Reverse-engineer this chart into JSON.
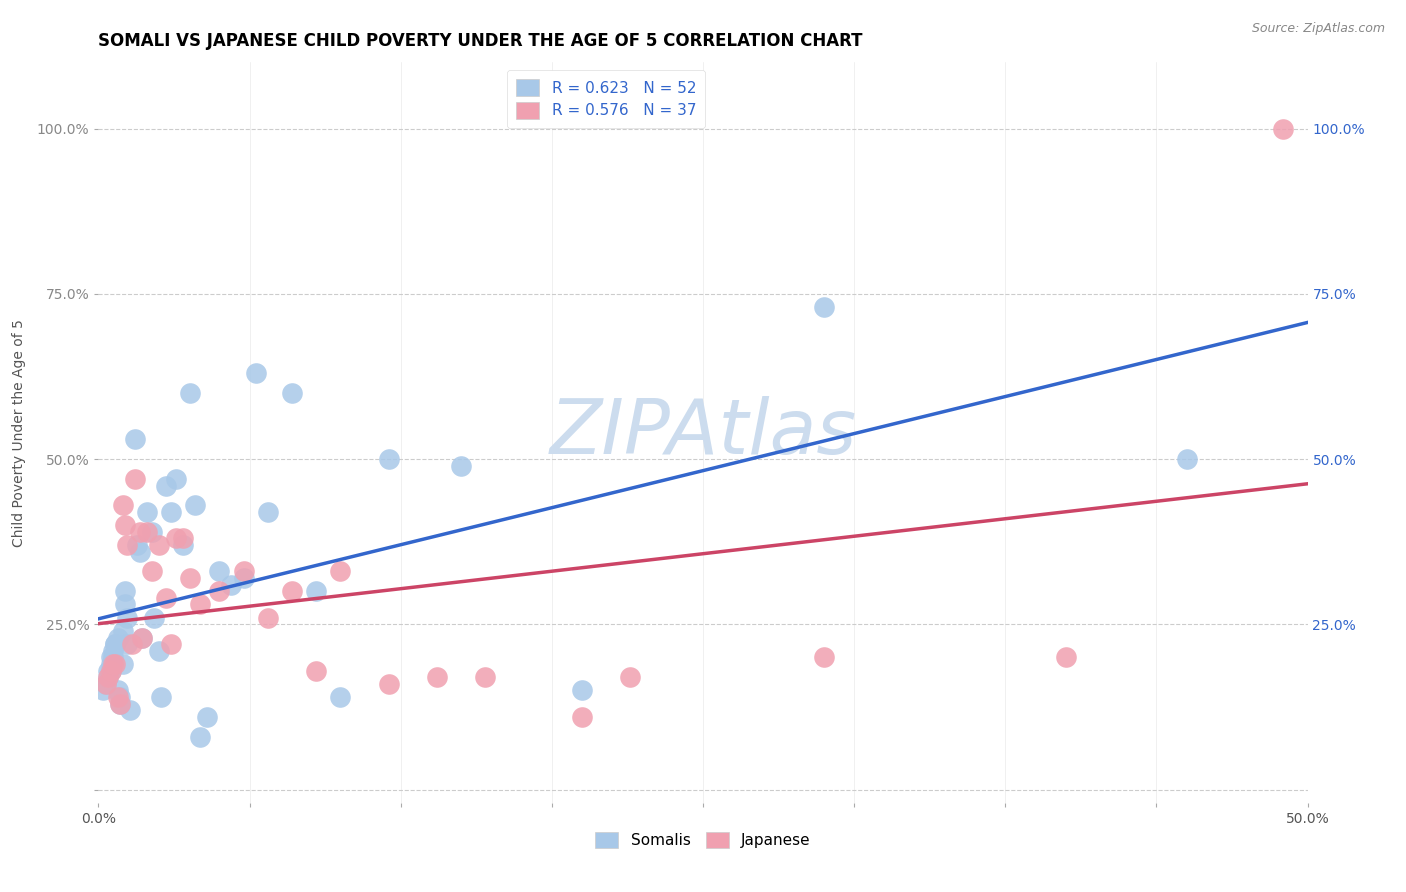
{
  "title": "SOMALI VS JAPANESE CHILD POVERTY UNDER THE AGE OF 5 CORRELATION CHART",
  "source": "Source: ZipAtlas.com",
  "ylabel": "Child Poverty Under the Age of 5",
  "xlim": [
    0,
    0.5
  ],
  "ylim": [
    -0.02,
    1.1
  ],
  "xticks": [
    0.0,
    0.0625,
    0.125,
    0.1875,
    0.25,
    0.3125,
    0.375,
    0.4375,
    0.5
  ],
  "xtick_labels_show": [
    "0.0%",
    "",
    "",
    "",
    "",
    "",
    "",
    "",
    "50.0%"
  ],
  "yticks": [
    0.0,
    0.25,
    0.5,
    0.75,
    1.0
  ],
  "ytick_labels_left": [
    "",
    "25.0%",
    "50.0%",
    "75.0%",
    "100.0%"
  ],
  "ytick_labels_right": [
    "25.0%",
    "50.0%",
    "75.0%",
    "100.0%"
  ],
  "yticks_right": [
    0.25,
    0.5,
    0.75,
    1.0
  ],
  "somali_R": 0.623,
  "somali_N": 52,
  "japanese_R": 0.576,
  "japanese_N": 37,
  "somali_color": "#a8c8e8",
  "japanese_color": "#f0a0b0",
  "somali_line_color": "#3366cc",
  "japanese_line_color": "#cc4466",
  "watermark": "ZIPAtlas",
  "watermark_color": "#ccdcee",
  "legend_label_somali": "Somalis",
  "legend_label_japanese": "Japanese",
  "somali_x": [
    0.002,
    0.003,
    0.004,
    0.004,
    0.005,
    0.005,
    0.005,
    0.006,
    0.006,
    0.007,
    0.007,
    0.008,
    0.008,
    0.009,
    0.009,
    0.01,
    0.01,
    0.011,
    0.011,
    0.012,
    0.012,
    0.013,
    0.015,
    0.016,
    0.017,
    0.018,
    0.02,
    0.022,
    0.023,
    0.025,
    0.026,
    0.028,
    0.03,
    0.032,
    0.035,
    0.038,
    0.04,
    0.042,
    0.045,
    0.05,
    0.055,
    0.06,
    0.065,
    0.07,
    0.08,
    0.09,
    0.1,
    0.12,
    0.15,
    0.2,
    0.3,
    0.45
  ],
  "somali_y": [
    0.15,
    0.16,
    0.17,
    0.18,
    0.18,
    0.19,
    0.2,
    0.2,
    0.21,
    0.22,
    0.22,
    0.23,
    0.15,
    0.14,
    0.13,
    0.24,
    0.19,
    0.3,
    0.28,
    0.26,
    0.22,
    0.12,
    0.53,
    0.37,
    0.36,
    0.23,
    0.42,
    0.39,
    0.26,
    0.21,
    0.14,
    0.46,
    0.42,
    0.47,
    0.37,
    0.6,
    0.43,
    0.08,
    0.11,
    0.33,
    0.31,
    0.32,
    0.63,
    0.42,
    0.6,
    0.3,
    0.14,
    0.5,
    0.49,
    0.15,
    0.73,
    0.5
  ],
  "japanese_x": [
    0.003,
    0.004,
    0.005,
    0.006,
    0.007,
    0.008,
    0.009,
    0.01,
    0.011,
    0.012,
    0.014,
    0.015,
    0.017,
    0.018,
    0.02,
    0.022,
    0.025,
    0.028,
    0.03,
    0.032,
    0.035,
    0.038,
    0.042,
    0.05,
    0.06,
    0.07,
    0.08,
    0.09,
    0.1,
    0.12,
    0.14,
    0.16,
    0.2,
    0.22,
    0.3,
    0.4,
    0.49
  ],
  "japanese_y": [
    0.16,
    0.17,
    0.18,
    0.19,
    0.19,
    0.14,
    0.13,
    0.43,
    0.4,
    0.37,
    0.22,
    0.47,
    0.39,
    0.23,
    0.39,
    0.33,
    0.37,
    0.29,
    0.22,
    0.38,
    0.38,
    0.32,
    0.28,
    0.3,
    0.33,
    0.26,
    0.3,
    0.18,
    0.33,
    0.16,
    0.17,
    0.17,
    0.11,
    0.17,
    0.2,
    0.2,
    1.0
  ],
  "grid_color": "#cccccc",
  "background_color": "#ffffff",
  "title_fontsize": 12,
  "axis_label_fontsize": 10,
  "tick_fontsize": 10,
  "legend_fontsize": 11,
  "source_fontsize": 9,
  "right_tick_color": "#3366cc",
  "legend_text_color": "#3366cc"
}
